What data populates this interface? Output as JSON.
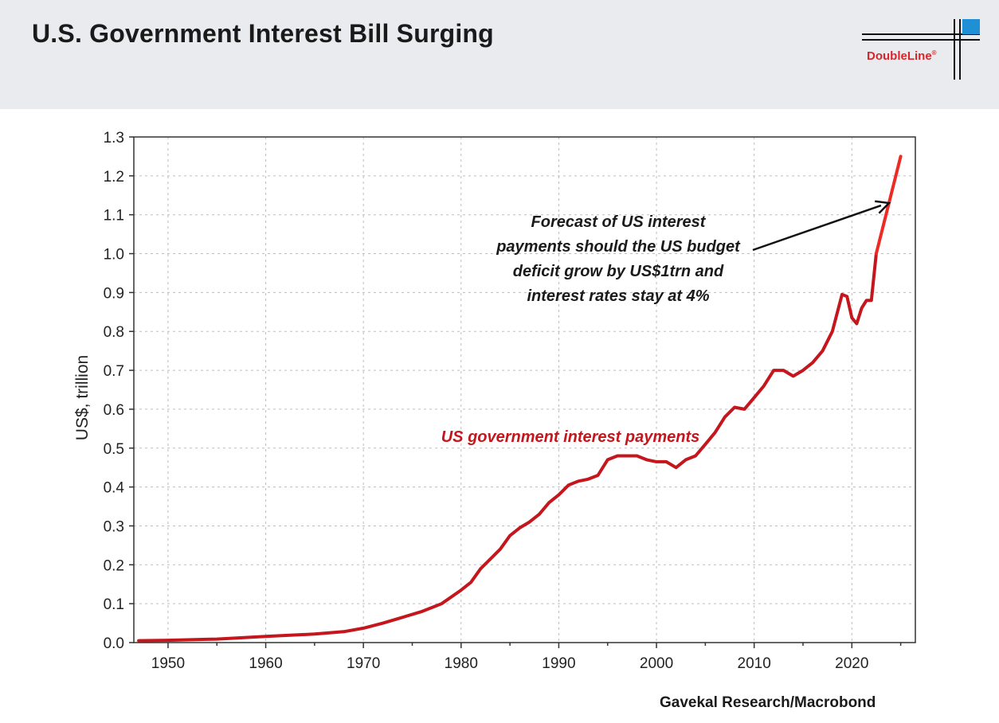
{
  "header": {
    "title": "U.S. Government Interest Bill Surging",
    "logo_text": "DoubleLine",
    "logo_mark": "®"
  },
  "colors": {
    "header_bg": "#e9ebef",
    "series_main": "#c4161c",
    "series_forecast": "#ee2a24",
    "logo_red": "#d8262c",
    "logo_blue": "#1f8fd6"
  },
  "source": "Gavekal Research/Macrobond",
  "chart_data": {
    "type": "line",
    "title": "U.S. Government Interest Bill Surging",
    "xlabel": "",
    "ylabel": "US$, trillion",
    "xlim": [
      1946.5,
      2026.5
    ],
    "ylim": [
      0,
      1.3
    ],
    "x_ticks": [
      1950,
      1960,
      1970,
      1980,
      1990,
      2000,
      2010,
      2020
    ],
    "y_ticks": [
      0.0,
      0.1,
      0.2,
      0.3,
      0.4,
      0.5,
      0.6,
      0.7,
      0.8,
      0.9,
      1.0,
      1.1,
      1.2,
      1.3
    ],
    "y_tick_labels": [
      "0.0",
      "0.1",
      "0.2",
      "0.3",
      "0.4",
      "0.5",
      "0.6",
      "0.7",
      "0.8",
      "0.9",
      "1.0",
      "1.1",
      "1.2",
      "1.3"
    ],
    "grid": true,
    "series": [
      {
        "name": "US government interest payments",
        "label": "US government interest payments",
        "x": [
          1947,
          1950,
          1955,
          1960,
          1965,
          1968,
          1970,
          1972,
          1974,
          1976,
          1978,
          1980,
          1981,
          1982,
          1983,
          1984,
          1985,
          1986,
          1987,
          1988,
          1989,
          1990,
          1991,
          1992,
          1993,
          1994,
          1995,
          1996,
          1997,
          1998,
          1999,
          2000,
          2001,
          2002,
          2003,
          2004,
          2005,
          2006,
          2007,
          2008,
          2009,
          2010,
          2011,
          2012,
          2013,
          2014,
          2015,
          2016,
          2017,
          2018,
          2019,
          2019.5,
          2020,
          2020.5,
          2021,
          2021.5,
          2022,
          2022.5
        ],
        "values": [
          0.005,
          0.006,
          0.009,
          0.016,
          0.022,
          0.028,
          0.037,
          0.05,
          0.065,
          0.08,
          0.1,
          0.135,
          0.155,
          0.19,
          0.215,
          0.24,
          0.275,
          0.295,
          0.31,
          0.33,
          0.36,
          0.38,
          0.405,
          0.415,
          0.42,
          0.43,
          0.47,
          0.48,
          0.48,
          0.48,
          0.47,
          0.465,
          0.465,
          0.45,
          0.47,
          0.48,
          0.51,
          0.54,
          0.58,
          0.605,
          0.6,
          0.63,
          0.66,
          0.7,
          0.7,
          0.685,
          0.7,
          0.72,
          0.75,
          0.8,
          0.895,
          0.89,
          0.835,
          0.82,
          0.86,
          0.88,
          0.88,
          1.0
        ]
      },
      {
        "name": "Forecast",
        "x": [
          2022.5,
          2025
        ],
        "values": [
          1.0,
          1.25
        ]
      }
    ],
    "annotations": {
      "forecast_lines": [
        "Forecast of US interest",
        "payments should the US budget",
        "deficit grow by US$1trn and",
        "interest rates stay at 4%"
      ],
      "arrow_target": {
        "x": 2023.8,
        "y": 1.13
      }
    }
  }
}
